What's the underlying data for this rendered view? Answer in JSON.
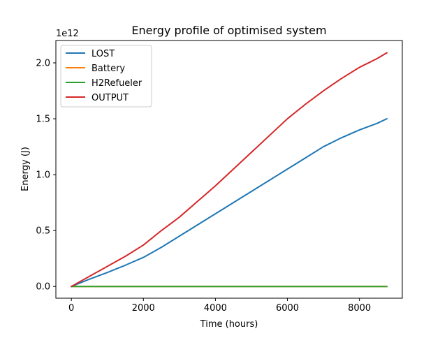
{
  "chart_data": {
    "type": "line",
    "title": "Energy profile of optimised system",
    "xlabel": "Time (hours)",
    "ylabel": "Energy (J)",
    "y_offset_label": "1e12",
    "xlim": [
      -430,
      9190
    ],
    "ylim": [
      -0.105,
      2.2
    ],
    "y_scale_note": "values in units of 1e12 J",
    "x_ticks": [
      0,
      2000,
      4000,
      6000,
      8000
    ],
    "x_tick_labels": [
      "0",
      "2000",
      "4000",
      "6000",
      "8000"
    ],
    "y_ticks": [
      0.0,
      0.5,
      1.0,
      1.5,
      2.0
    ],
    "y_tick_labels": [
      "0.0",
      "0.5",
      "1.0",
      "1.5",
      "2.0"
    ],
    "grid": false,
    "legend_position": "top-left",
    "series": [
      {
        "name": "LOST",
        "color": "#1f77b4",
        "x": [
          0,
          500,
          1000,
          1500,
          2000,
          2500,
          3000,
          3500,
          4000,
          4500,
          5000,
          5500,
          6000,
          6500,
          7000,
          7500,
          8000,
          8500,
          8760
        ],
        "y": [
          0,
          0.065,
          0.125,
          0.19,
          0.26,
          0.35,
          0.45,
          0.55,
          0.65,
          0.75,
          0.85,
          0.95,
          1.05,
          1.15,
          1.25,
          1.33,
          1.4,
          1.46,
          1.5
        ]
      },
      {
        "name": "Battery",
        "color": "#ff7f0e",
        "x": [
          0,
          8760
        ],
        "y": [
          0,
          0
        ]
      },
      {
        "name": "H2Refueler",
        "color": "#2ca02c",
        "x": [
          0,
          8760
        ],
        "y": [
          0,
          0
        ]
      },
      {
        "name": "OUTPUT",
        "color": "#d62728",
        "x": [
          0,
          500,
          1000,
          1500,
          2000,
          2500,
          3000,
          3500,
          4000,
          4500,
          5000,
          5500,
          6000,
          6500,
          7000,
          7500,
          8000,
          8500,
          8760
        ],
        "y": [
          0,
          0.09,
          0.18,
          0.27,
          0.37,
          0.5,
          0.62,
          0.76,
          0.9,
          1.05,
          1.2,
          1.35,
          1.5,
          1.63,
          1.75,
          1.86,
          1.96,
          2.04,
          2.09
        ]
      }
    ]
  }
}
